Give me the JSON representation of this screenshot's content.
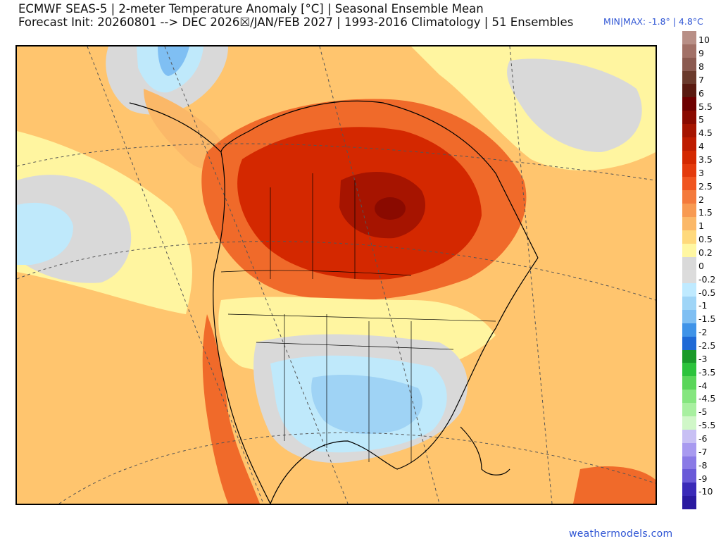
{
  "header": {
    "title_line1": "ECMWF SEAS-5 | 2-meter Temperature Anomaly [°C] | Seasonal Ensemble Mean",
    "title_line2": "Forecast Init: 20260801 --> DEC 2026☒/JAN/FEB 2027  | 1993-2016 Climatology | 51 Ensembles",
    "minmax": "MIN|MAX: -1.8° | 4.8°C"
  },
  "map": {
    "description_region": "North America",
    "dominant_colors": {
      "warm_strong": "#c82800",
      "warm_mid": "#f06a2a",
      "warm_light": "#ffa65a",
      "warm_pale": "#ffc56e",
      "near_zero_yellow": "#fff5a0",
      "neutral_gray": "#d9d9d9",
      "cool_light": "#bfe9fb",
      "cool_mid": "#9fd3f5",
      "cool_strong": "#6ab5ee"
    }
  },
  "legend": {
    "levels": [
      {
        "label": "10",
        "color": "#b88f86"
      },
      {
        "label": "9",
        "color": "#a27167"
      },
      {
        "label": "8",
        "color": "#8b5a50"
      },
      {
        "label": "7",
        "color": "#6b3a2c"
      },
      {
        "label": "6",
        "color": "#5a1a10"
      },
      {
        "label": "5.5",
        "color": "#6e0000"
      },
      {
        "label": "5",
        "color": "#8a0a00"
      },
      {
        "label": "4.5",
        "color": "#a61400"
      },
      {
        "label": "4",
        "color": "#be1c00"
      },
      {
        "label": "3.5",
        "color": "#d42800"
      },
      {
        "label": "3",
        "color": "#e43a0c"
      },
      {
        "label": "2.5",
        "color": "#f05520"
      },
      {
        "label": "2",
        "color": "#f47a3c"
      },
      {
        "label": "1.5",
        "color": "#f89a52"
      },
      {
        "label": "1",
        "color": "#fbb868"
      },
      {
        "label": "0.5",
        "color": "#ffd97c"
      },
      {
        "label": "0.2",
        "color": "#fff7a2"
      },
      {
        "label": "0",
        "color": "#d9d9d9"
      },
      {
        "label": "-0.2",
        "color": "#dcdcdc"
      },
      {
        "label": "-0.5",
        "color": "#bfeaff"
      },
      {
        "label": "-1",
        "color": "#9fd5f7"
      },
      {
        "label": "-1.5",
        "color": "#7fbff3"
      },
      {
        "label": "-2",
        "color": "#3f93e8"
      },
      {
        "label": "-2.5",
        "color": "#1f6ad6"
      },
      {
        "label": "-3",
        "color": "#1a9a2a"
      },
      {
        "label": "-3.5",
        "color": "#2cc33c"
      },
      {
        "label": "-4",
        "color": "#5ad65a"
      },
      {
        "label": "-4.5",
        "color": "#85e67f"
      },
      {
        "label": "-5",
        "color": "#a8f0a0"
      },
      {
        "label": "-5.5",
        "color": "#d0f7c8"
      },
      {
        "label": "-6",
        "color": "#c8c0f4"
      },
      {
        "label": "-7",
        "color": "#a89af0"
      },
      {
        "label": "-8",
        "color": "#8a7ae6"
      },
      {
        "label": "-9",
        "color": "#6a5ad8"
      },
      {
        "label": "-10",
        "color": "#3a2ab8"
      },
      {
        "label": "",
        "color": "#2a1aa0"
      }
    ]
  },
  "footer": {
    "credit": "weathermodels.com"
  }
}
